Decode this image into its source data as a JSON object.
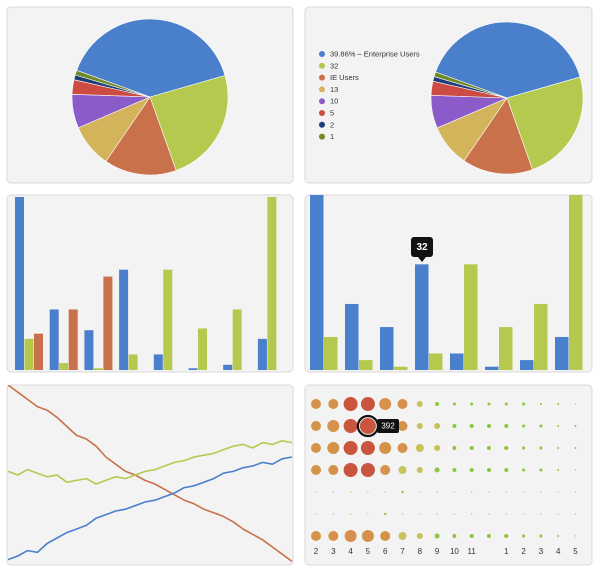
{
  "chart_data": [
    {
      "type": "pie",
      "values": [
        40,
        24,
        15,
        9,
        7,
        3,
        1,
        1
      ],
      "colors": [
        "#4a7fcb",
        "#b5c94f",
        "#c9714a",
        "#d3b45a",
        "#8a5bc9",
        "#cc4b43",
        "#1f3d7a",
        "#6f8a2a"
      ]
    },
    {
      "type": "pie",
      "categories": [
        "39.86% – Enterprise Users",
        "32",
        "IE Users",
        "13",
        "10",
        "5",
        "2",
        "1"
      ],
      "values": [
        40,
        24,
        15,
        9,
        7,
        3,
        1,
        1
      ],
      "colors": [
        "#4a7fcb",
        "#b5c94f",
        "#c9714a",
        "#d3b45a",
        "#8a5bc9",
        "#cc4b43",
        "#1f3d7a",
        "#6f8a2a"
      ],
      "legend": "left"
    },
    {
      "type": "bar",
      "ylim": [
        0,
        100
      ],
      "series": [
        {
          "color": "#4a7fcb",
          "values": [
            100,
            35,
            23,
            58,
            9,
            1,
            3,
            18
          ]
        },
        {
          "color": "#b5c94f",
          "values": [
            18,
            4,
            1,
            9,
            58,
            24,
            35,
            100
          ]
        },
        {
          "color": "#c9714a",
          "values": [
            21,
            35,
            54,
            null,
            null,
            null,
            null,
            null
          ]
        }
      ]
    },
    {
      "type": "bar",
      "ylim": [
        0,
        53
      ],
      "series": [
        {
          "color": "#4a7fcb",
          "values": [
            53,
            20,
            13,
            32,
            5,
            1,
            3,
            10
          ]
        },
        {
          "color": "#b5c94f",
          "values": [
            10,
            3,
            1,
            5,
            32,
            13,
            20,
            53
          ]
        }
      ]
    },
    {
      "type": "line",
      "ylim": [
        0,
        100
      ],
      "series": [
        {
          "color": "#c9714a",
          "values": [
            100,
            96,
            92,
            88,
            86,
            82,
            77,
            72,
            70,
            66,
            60,
            56,
            52,
            50,
            47,
            45,
            42,
            39,
            36,
            34,
            31,
            29,
            27,
            24,
            20,
            17,
            14,
            10,
            6,
            2
          ]
        },
        {
          "color": "#b5c94f",
          "values": [
            52,
            50,
            53,
            51,
            49,
            50,
            46,
            47,
            48,
            45,
            47,
            49,
            48,
            50,
            52,
            53,
            55,
            57,
            58,
            60,
            61,
            62,
            64,
            66,
            67,
            65,
            68,
            67,
            69,
            68
          ]
        },
        {
          "color": "#4a7fcb",
          "values": [
            3,
            5,
            8,
            7,
            12,
            15,
            18,
            20,
            22,
            26,
            28,
            30,
            31,
            33,
            35,
            36,
            38,
            40,
            43,
            44,
            46,
            48,
            51,
            52,
            54,
            55,
            57,
            56,
            59,
            60
          ]
        }
      ]
    },
    {
      "type": "bubble",
      "categories": [
        "2",
        "3",
        "4",
        "5",
        "6",
        "7",
        "8",
        "9",
        "10",
        "11",
        null,
        "1",
        "2",
        "3",
        "4",
        "5"
      ],
      "colors": [
        "#8dc63f",
        "#c8c25c",
        "#d4924a",
        "#c9553f"
      ],
      "series": [
        {
          "values": [
            153,
            153,
            300,
            300,
            220,
            153,
            55,
            25,
            14,
            14,
            14,
            14,
            14,
            6,
            6,
            2
          ]
        },
        {
          "values": [
            153,
            220,
            300,
            392,
            300,
            153,
            55,
            55,
            25,
            25,
            25,
            25,
            14,
            14,
            6,
            6
          ]
        },
        {
          "values": [
            153,
            220,
            300,
            300,
            220,
            153,
            98,
            55,
            25,
            25,
            25,
            25,
            14,
            14,
            6,
            6
          ]
        },
        {
          "values": [
            153,
            153,
            300,
            300,
            153,
            98,
            55,
            38,
            25,
            25,
            25,
            25,
            14,
            14,
            6,
            2
          ]
        },
        {
          "values": [
            2,
            2,
            2,
            2,
            2,
            9,
            2,
            2,
            2,
            2,
            2,
            2,
            2,
            2,
            2,
            2
          ]
        },
        {
          "values": [
            2,
            2,
            2,
            2,
            9,
            2,
            2,
            2,
            2,
            2,
            2,
            2,
            2,
            2,
            2,
            2
          ]
        },
        {
          "values": [
            153,
            153,
            220,
            220,
            153,
            98,
            55,
            38,
            25,
            25,
            25,
            25,
            14,
            14,
            6,
            2
          ]
        }
      ]
    }
  ]
}
